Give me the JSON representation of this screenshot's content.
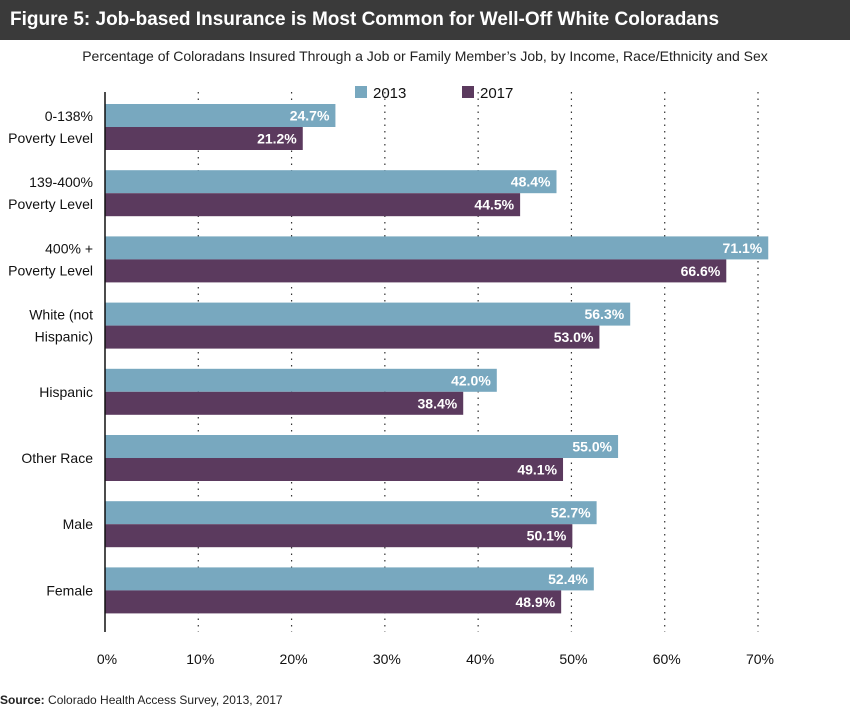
{
  "title": "Figure 5: Job-based Insurance is Most Common for Well-Off White Coloradans",
  "subtitle": "Percentage of Coloradans Insured Through a Job or Family Member’s Job, by Income, Race/Ethnicity and Sex",
  "source_label": "Source:",
  "source_text": " Colorado Health Access Survey, 2013, 2017",
  "colors": {
    "series_2013": "#78a8bf",
    "series_2017": "#5b3a5e",
    "grid": "#333333",
    "title_bg": "#3a3a3a"
  },
  "chart_data": {
    "type": "bar",
    "orientation": "horizontal",
    "title": "Figure 5: Job-based Insurance is Most Common for Well-Off White Coloradans",
    "subtitle": "Percentage of Coloradans Insured Through a Job or Family Member’s Job, by Income, Race/Ethnicity and Sex",
    "categories": [
      [
        "0-138%",
        "Poverty Level"
      ],
      [
        "139-400%",
        "Poverty Level"
      ],
      [
        "400% +",
        "Poverty Level"
      ],
      [
        "White (not",
        "Hispanic)"
      ],
      [
        "Hispanic"
      ],
      [
        "Other Race"
      ],
      [
        "Male"
      ],
      [
        "Female"
      ]
    ],
    "series": [
      {
        "name": "2013",
        "values": [
          24.7,
          48.4,
          71.1,
          56.3,
          42.0,
          55.0,
          52.7,
          52.4
        ],
        "labels": [
          "24.7%",
          "48.4%",
          "71.1%",
          "56.3%",
          "42.0%",
          "55.0%",
          "52.7%",
          "52.4%"
        ]
      },
      {
        "name": "2017",
        "values": [
          21.2,
          44.5,
          66.6,
          53.0,
          38.4,
          49.1,
          50.1,
          48.9
        ],
        "labels": [
          "21.2%",
          "44.5%",
          "66.6%",
          "53.0%",
          "38.4%",
          "49.1%",
          "50.1%",
          "48.9%"
        ]
      }
    ],
    "xticks": [
      0,
      10,
      20,
      30,
      40,
      50,
      60,
      70
    ],
    "xtick_labels": [
      "0%",
      "10%",
      "20%",
      "30%",
      "40%",
      "50%",
      "60%",
      "70%"
    ],
    "xlim": [
      0,
      70
    ],
    "grid": "vertical-dotted",
    "legend": "top-center"
  }
}
